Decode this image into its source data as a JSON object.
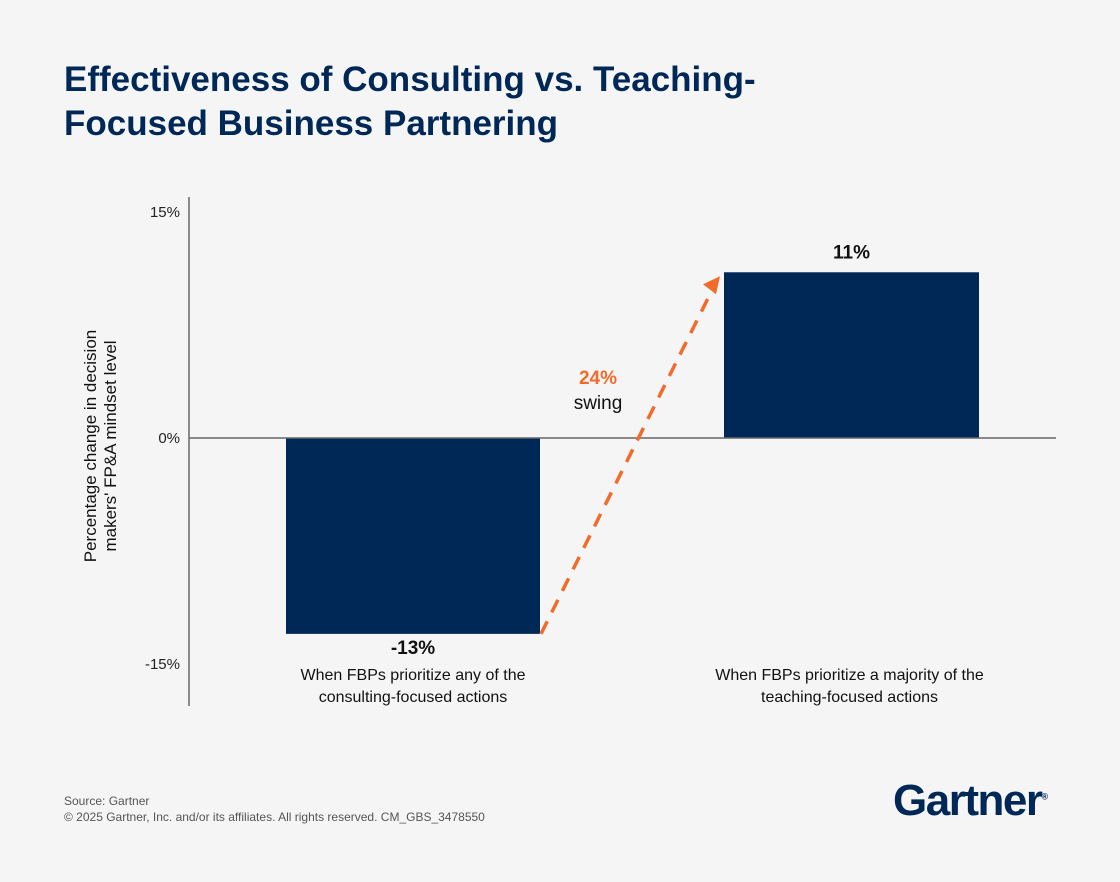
{
  "chart_data": {
    "type": "bar",
    "title": "Effectiveness of Consulting vs. Teaching-Focused Business Partnering",
    "ylabel": "Percentage change in decision makers' FP&A mindset level",
    "ylim": [
      -15,
      15
    ],
    "yticks": [
      15,
      0,
      -15
    ],
    "ytick_labels": [
      "15%",
      "0%",
      "-15%"
    ],
    "categories": [
      "When FBPs prioritize any of the consulting-focused actions",
      "When FBPs prioritize a majority of the teaching-focused actions"
    ],
    "category_lines": [
      [
        "When FBPs prioritize any of the",
        "consulting-focused actions"
      ],
      [
        "When FBPs prioritize a majority of the",
        "teaching-focused actions"
      ]
    ],
    "values": [
      -13,
      11
    ],
    "data_labels": [
      "-13%",
      "11%"
    ],
    "annotation": {
      "value": "24%",
      "text": "swing"
    },
    "grid": false,
    "colors": {
      "bar": "#002856",
      "arrow": "#f26b2a",
      "axis": "#666666"
    }
  },
  "footer": {
    "source": "Source: Gartner",
    "copyright": "© 2025 Gartner, Inc. and/or its affiliates. All rights reserved. CM_GBS_3478550"
  },
  "logo": {
    "text": "Gartner",
    "mark": "®"
  }
}
